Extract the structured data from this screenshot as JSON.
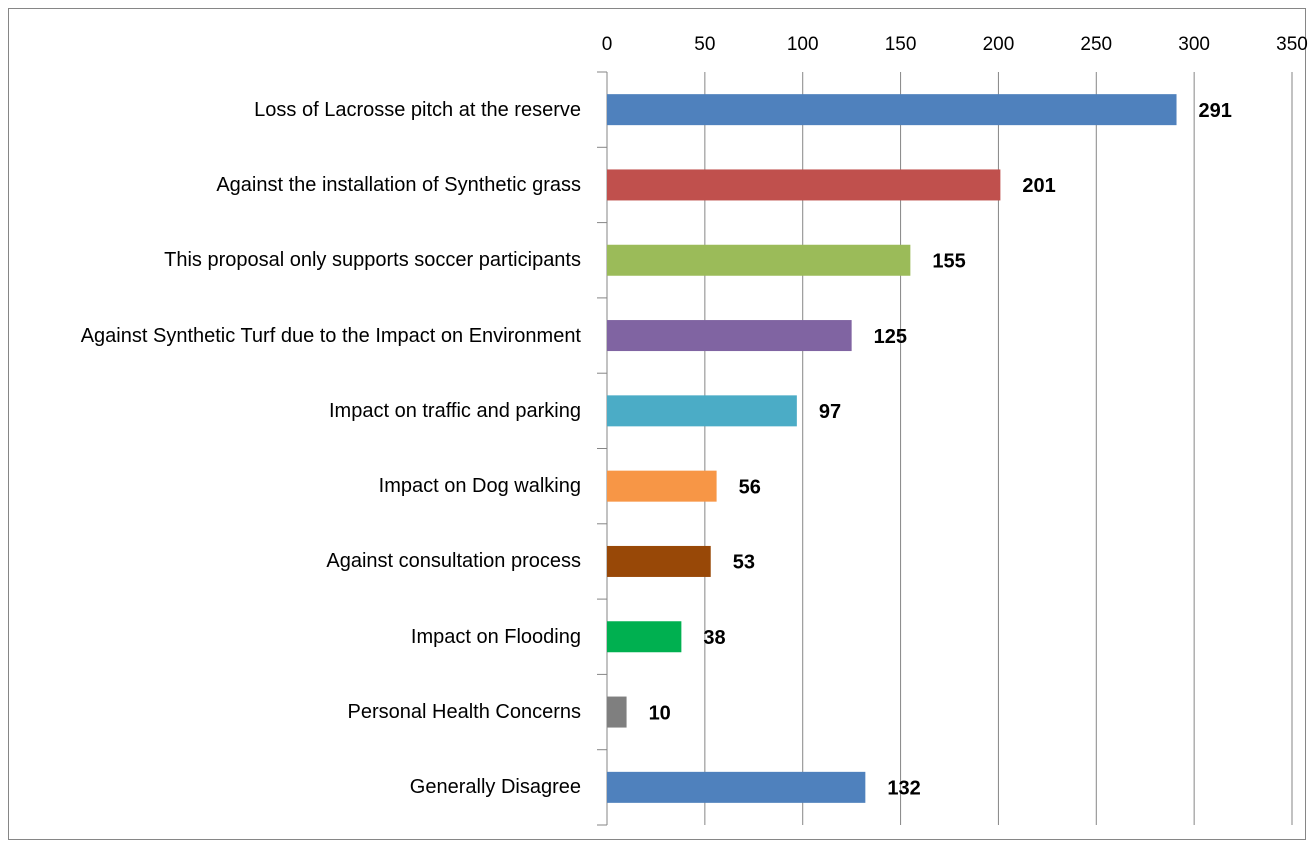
{
  "chart_data": {
    "type": "bar",
    "orientation": "horizontal",
    "categories": [
      "Loss of Lacrosse pitch at the reserve",
      "Against the installation of Synthetic grass",
      "This proposal only supports soccer participants",
      "Against Synthetic Turf due to the Impact on Environment",
      "Impact on traffic and parking",
      "Impact on Dog walking",
      "Against consultation process",
      "Impact on Flooding",
      "Personal Health Concerns",
      "Generally Disagree"
    ],
    "values": [
      291,
      201,
      155,
      125,
      97,
      56,
      53,
      38,
      10,
      132
    ],
    "colors": [
      "#4f81bd",
      "#c0504d",
      "#9bbb59",
      "#8064a2",
      "#4bacc6",
      "#f79646",
      "#984807",
      "#00b050",
      "#7f7f7f",
      "#4f81bd"
    ],
    "xlim": [
      0,
      350
    ],
    "xticks": [
      0,
      50,
      100,
      150,
      200,
      250,
      300,
      350
    ],
    "grid": true
  }
}
